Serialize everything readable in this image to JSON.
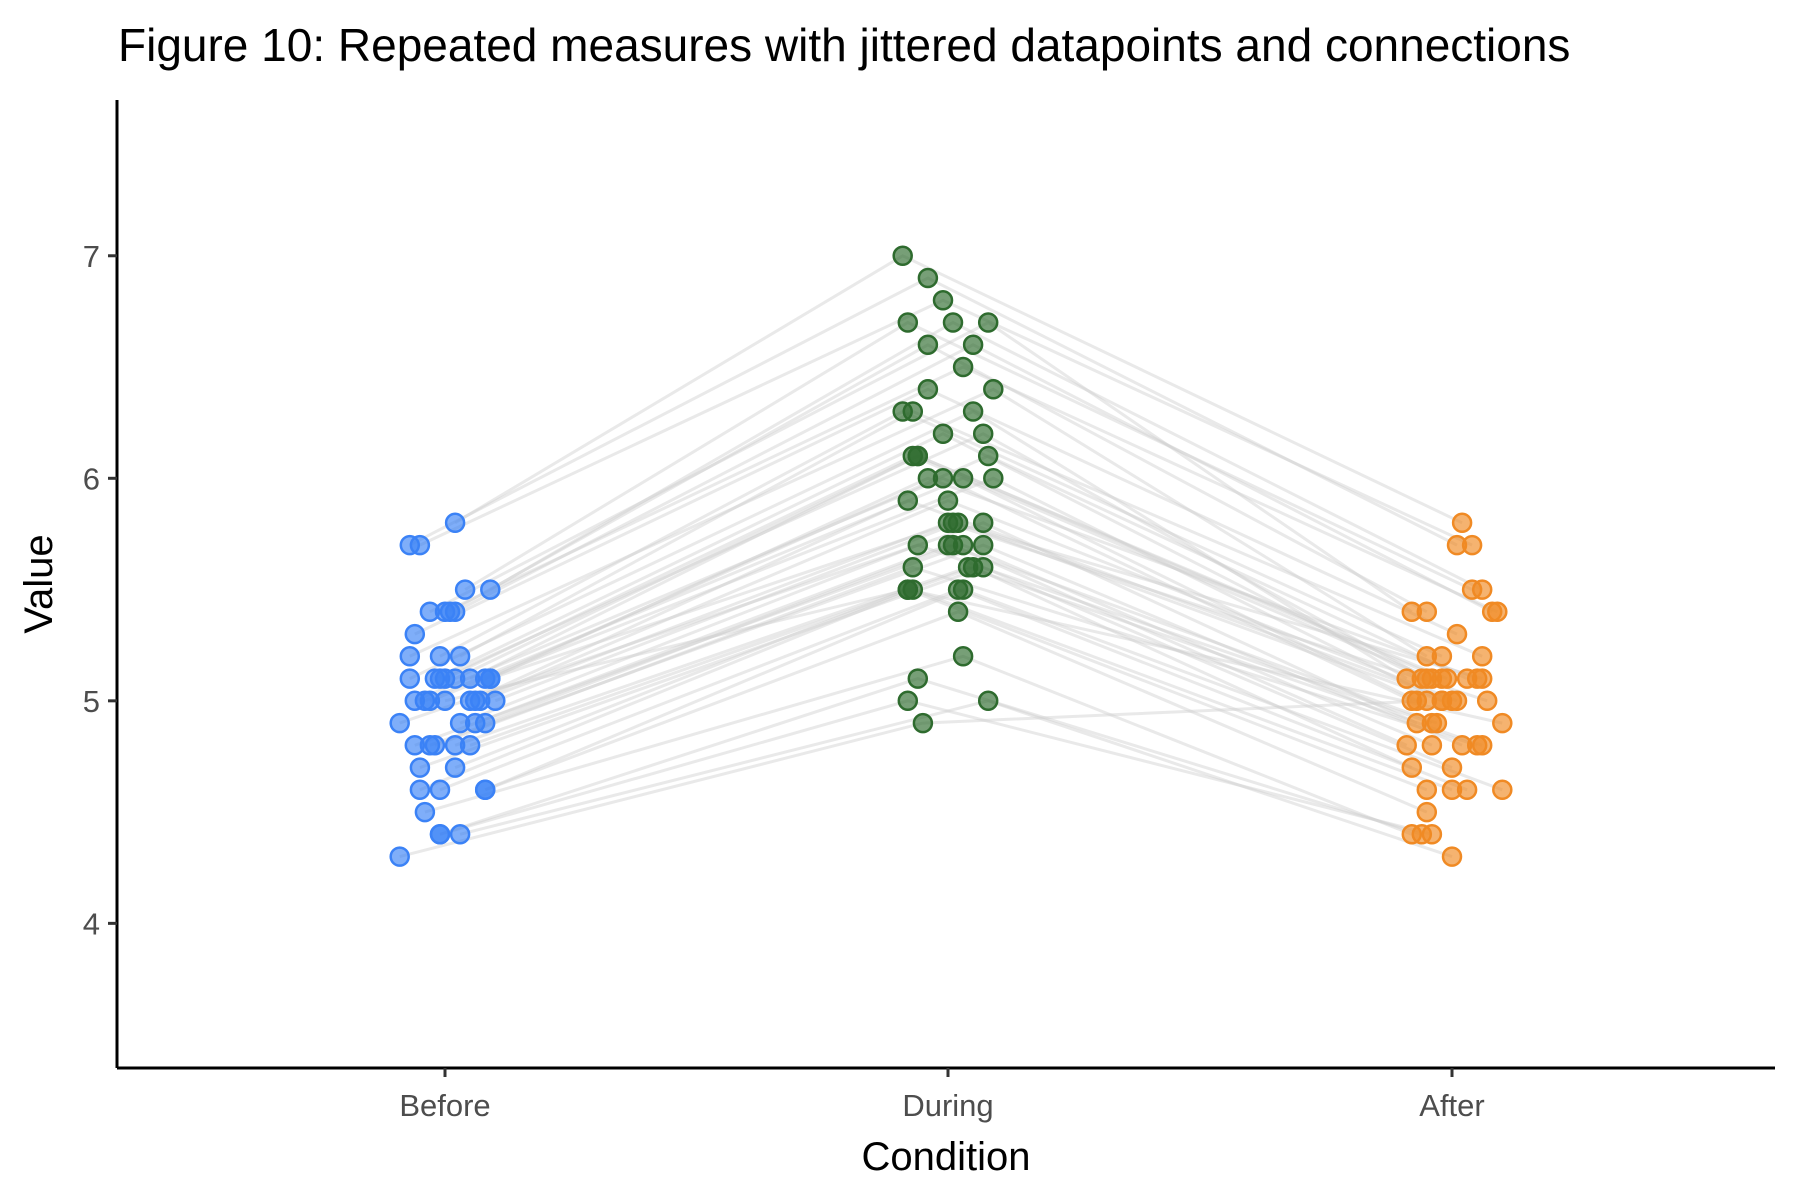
{
  "chart_data": {
    "type": "scatter",
    "title": "Figure 10: Repeated measures with jittered datapoints and connections",
    "xlabel": "Condition",
    "ylabel": "Value",
    "categories": [
      "Before",
      "During",
      "After"
    ],
    "ylim": [
      3.35,
      7.7
    ],
    "yticks": [
      4,
      5,
      6,
      7
    ],
    "grid": false,
    "legend": "none",
    "colors": {
      "Before": "#3b82f6",
      "During": "#2e6b2e",
      "After": "#f08a24",
      "line": "#cfcfcf"
    },
    "series": [
      {
        "name": "Before",
        "values": [
          5.8,
          5.7,
          5.7,
          5.5,
          5.5,
          5.4,
          5.4,
          5.4,
          5.4,
          5.3,
          5.2,
          5.2,
          5.2,
          5.1,
          5.1,
          5.1,
          5.1,
          5.1,
          5.1,
          5.1,
          5.1,
          5.0,
          5.0,
          5.0,
          5.0,
          5.0,
          5.0,
          5.0,
          4.9,
          4.9,
          4.9,
          4.9,
          4.8,
          4.8,
          4.8,
          4.8,
          4.8,
          4.7,
          4.7,
          4.6,
          4.6,
          4.6,
          4.6,
          4.5,
          4.4,
          4.4,
          4.4,
          4.3,
          5.1,
          5.0
        ]
      },
      {
        "name": "During",
        "values": [
          7.0,
          6.9,
          6.8,
          6.7,
          6.7,
          6.7,
          6.6,
          6.6,
          6.5,
          6.4,
          6.4,
          6.3,
          6.3,
          6.3,
          6.2,
          6.2,
          6.1,
          6.1,
          6.1,
          6.1,
          6.0,
          6.0,
          6.0,
          6.0,
          5.9,
          5.9,
          5.8,
          5.8,
          5.8,
          5.7,
          5.7,
          5.7,
          5.7,
          5.7,
          5.6,
          5.6,
          5.6,
          5.6,
          5.5,
          5.5,
          5.5,
          5.5,
          5.4,
          5.2,
          5.1,
          5.0,
          5.0,
          4.9,
          5.8,
          5.5
        ]
      },
      {
        "name": "After",
        "values": [
          5.8,
          5.7,
          5.7,
          5.5,
          5.5,
          5.4,
          5.4,
          5.4,
          5.4,
          5.3,
          5.2,
          5.2,
          5.2,
          5.1,
          5.1,
          5.1,
          5.1,
          5.1,
          5.1,
          5.1,
          5.1,
          5.0,
          5.0,
          5.0,
          5.0,
          5.0,
          5.0,
          5.0,
          4.9,
          4.9,
          4.9,
          4.8,
          4.8,
          4.8,
          4.8,
          4.8,
          4.7,
          4.7,
          4.6,
          4.6,
          4.6,
          4.6,
          4.5,
          4.4,
          4.4,
          4.4,
          4.3,
          5.0,
          5.1,
          4.9
        ]
      }
    ],
    "jitter": {
      "Before": [
        0.02,
        -0.07,
        -0.05,
        0.04,
        0.09,
        -0.03,
        0.01,
        0.02,
        0.0,
        -0.06,
        -0.07,
        -0.01,
        0.03,
        -0.07,
        -0.02,
        -0.01,
        0.0,
        0.02,
        0.05,
        0.08,
        0.09,
        -0.06,
        -0.04,
        -0.03,
        0.05,
        0.06,
        0.07,
        0.1,
        -0.09,
        0.03,
        0.06,
        0.08,
        -0.06,
        -0.03,
        -0.02,
        0.02,
        0.05,
        -0.05,
        0.02,
        -0.05,
        -0.01,
        0.08,
        0.08,
        -0.04,
        -0.01,
        -0.01,
        0.03,
        -0.09,
        0.09,
        0.0
      ],
      "During": [
        -0.09,
        -0.04,
        -0.01,
        -0.08,
        0.01,
        0.08,
        -0.04,
        0.05,
        0.03,
        -0.04,
        0.09,
        -0.09,
        -0.07,
        0.05,
        -0.01,
        0.07,
        -0.07,
        -0.06,
        -0.06,
        0.08,
        -0.04,
        -0.01,
        0.03,
        0.09,
        -0.08,
        0.0,
        0.0,
        0.02,
        0.07,
        -0.06,
        -0.0,
        0.01,
        0.03,
        0.07,
        -0.07,
        0.04,
        0.05,
        0.07,
        -0.08,
        -0.07,
        0.02,
        0.03,
        0.02,
        0.03,
        -0.06,
        -0.08,
        0.08,
        -0.05,
        0.01,
        -0.08
      ],
      "After": [
        0.02,
        0.01,
        0.04,
        0.04,
        0.06,
        -0.08,
        -0.05,
        0.08,
        0.09,
        0.01,
        -0.05,
        -0.02,
        0.06,
        -0.09,
        -0.06,
        -0.05,
        -0.04,
        -0.02,
        -0.01,
        0.03,
        0.05,
        -0.08,
        -0.07,
        -0.02,
        0.0,
        0.01,
        0.07,
        -0.02,
        -0.07,
        -0.04,
        -0.03,
        -0.09,
        -0.04,
        0.02,
        0.05,
        0.06,
        -0.08,
        0.0,
        -0.05,
        0.0,
        0.03,
        0.1,
        -0.05,
        -0.08,
        -0.06,
        -0.04,
        0.0,
        -0.05,
        0.06,
        0.1
      ]
    }
  }
}
